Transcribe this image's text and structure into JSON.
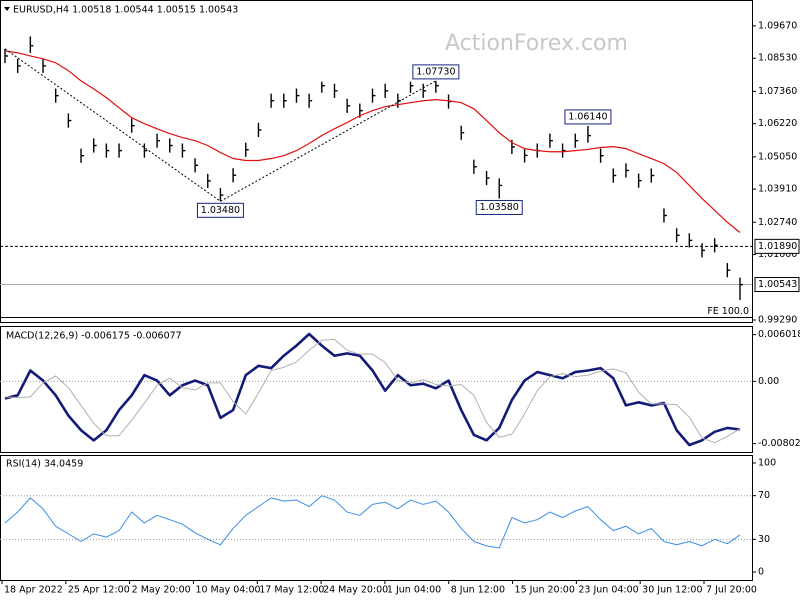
{
  "chart_data": [
    {
      "type": "ohlc",
      "title": "EURUSD,H4 1.00518 1.00544 1.00515 1.00543",
      "watermark": "ActionForex.com",
      "x_labels": [
        "18 Apr 2022",
        "25 Apr 12:00",
        "2 May 20:00",
        "10 May 04:00",
        "17 May 12:00",
        "24 May 20:00",
        "1 Jun 04:00",
        "8 Jun 12:00",
        "15 Jun 20:00",
        "23 Jun 04:00",
        "30 Jun 12:00",
        "7 Jul 20:00"
      ],
      "color": "#000000",
      "high": [
        1.0886,
        1.0851,
        1.093,
        1.0851,
        1.0746,
        1.0658,
        1.0534,
        1.057,
        1.0552,
        1.0552,
        1.064,
        1.0552,
        1.0587,
        1.057,
        1.0552,
        1.05,
        1.0445,
        1.0395,
        1.0465,
        1.0555,
        1.0625,
        1.0728,
        1.0728,
        1.0746,
        1.0728,
        1.077,
        1.0763,
        1.071,
        1.0693,
        1.0746,
        1.0763,
        1.0728,
        1.077,
        1.0763,
        1.0773,
        1.0725,
        1.0615,
        1.0495,
        1.0455,
        1.0429,
        1.0565,
        1.0535,
        1.0552,
        1.0587,
        1.0552,
        1.0587,
        1.0614,
        1.0534,
        1.0464,
        1.0482,
        1.0446,
        1.0464,
        1.0323,
        1.0253,
        1.0235,
        1.02,
        1.0218,
        1.013,
        1.0079
      ],
      "low": [
        1.0836,
        1.0801,
        1.0872,
        1.0801,
        1.0696,
        1.0608,
        1.0484,
        1.052,
        1.0502,
        1.0502,
        1.059,
        1.0502,
        1.0537,
        1.052,
        1.0502,
        1.045,
        1.0395,
        1.0348,
        1.0415,
        1.0505,
        1.0575,
        1.0678,
        1.0678,
        1.0696,
        1.0678,
        1.0731,
        1.0713,
        1.066,
        1.0643,
        1.0696,
        1.0713,
        1.0678,
        1.0731,
        1.0713,
        1.0731,
        1.0675,
        1.0565,
        1.0445,
        1.0405,
        1.0358,
        1.0515,
        1.0485,
        1.0502,
        1.0537,
        1.0502,
        1.0537,
        1.0555,
        1.0484,
        1.0414,
        1.0432,
        1.0396,
        1.0414,
        1.0273,
        1.0203,
        1.0185,
        1.015,
        1.0168,
        1.008,
        1.0
      ],
      "close": [
        1.0861,
        1.0826,
        1.0897,
        1.0826,
        1.0721,
        1.0633,
        1.0509,
        1.0545,
        1.0527,
        1.0527,
        1.0615,
        1.0527,
        1.0562,
        1.0545,
        1.0527,
        1.0475,
        1.042,
        1.037,
        1.044,
        1.053,
        1.06,
        1.0703,
        1.0703,
        1.0721,
        1.0703,
        1.0756,
        1.0738,
        1.0685,
        1.0668,
        1.0721,
        1.0738,
        1.0703,
        1.0756,
        1.0738,
        1.0756,
        1.07,
        1.059,
        1.047,
        1.043,
        1.0404,
        1.054,
        1.051,
        1.0527,
        1.0562,
        1.0527,
        1.0562,
        1.058,
        1.0509,
        1.0439,
        1.0457,
        1.0421,
        1.0439,
        1.0298,
        1.0228,
        1.021,
        1.0175,
        1.0193,
        1.0105,
        1.0054
      ],
      "moving_average": {
        "color": "#e01010",
        "values": [
          1.0879,
          1.0872,
          1.0861,
          1.0851,
          1.0837,
          1.0809,
          1.0773,
          1.0745,
          1.0714,
          1.0678,
          1.0643,
          1.0622,
          1.0604,
          1.0587,
          1.0573,
          1.0562,
          1.0545,
          1.052,
          1.0499,
          1.0492,
          1.0492,
          1.0499,
          1.0509,
          1.0527,
          1.0552,
          1.058,
          1.0604,
          1.0626,
          1.065,
          1.0668,
          1.0682,
          1.0689,
          1.0696,
          1.0703,
          1.0707,
          1.0703,
          1.0696,
          1.0675,
          1.0633,
          1.059,
          1.0555,
          1.0534,
          1.0527,
          1.0523,
          1.0523,
          1.0527,
          1.0531,
          1.0538,
          1.0541,
          1.0534,
          1.0516,
          1.0499,
          1.0481,
          1.045,
          1.0404,
          1.0358,
          1.0316,
          1.0274,
          1.0238
        ]
      },
      "annotations": [
        {
          "value": 1.0348,
          "label": "1.03480",
          "at": "low"
        },
        {
          "value": 1.0773,
          "label": "1.07730",
          "at": "high"
        },
        {
          "value": 1.0358,
          "label": "1.03580",
          "at": "low"
        },
        {
          "value": 1.0614,
          "label": "1.06140",
          "at": "high"
        }
      ],
      "levels": [
        {
          "value": 1.0189,
          "label": "1.01890",
          "style": "dashed"
        },
        {
          "value": 1.00543,
          "label": "1.00543",
          "style": "price"
        },
        {
          "value": 0.9938,
          "label": "FE 100.0",
          "style": "fibo"
        }
      ],
      "ylim": [
        0.9922,
        1.1055
      ],
      "yticks": [
        {
          "value": 1.0967,
          "label": "1.09670"
        },
        {
          "value": 1.0853,
          "label": "1.08530"
        },
        {
          "value": 1.0736,
          "label": "1.07360"
        },
        {
          "value": 1.0622,
          "label": "1.06220"
        },
        {
          "value": 1.0505,
          "label": "1.05050"
        },
        {
          "value": 1.0391,
          "label": "1.03910"
        },
        {
          "value": 1.0274,
          "label": "1.02740"
        },
        {
          "value": 1.016,
          "label": "1.01600"
        },
        {
          "value": 0.9929,
          "label": "0.99290"
        }
      ],
      "grid": false
    },
    {
      "type": "line",
      "title": "MACD(12,26,9) -0.006175 -0.006077",
      "lines": [
        {
          "color": "#141a78",
          "width": 2.6,
          "values": [
            -0.0022,
            -0.0018,
            0.0014,
            0.0001,
            -0.0018,
            -0.0044,
            -0.0063,
            -0.0076,
            -0.0063,
            -0.0037,
            -0.0018,
            0.0008,
            0.0001,
            -0.0018,
            -0.0005,
            0.0001,
            -0.0005,
            -0.0047,
            -0.0037,
            0.0008,
            0.002,
            0.0017,
            0.0033,
            0.0046,
            0.0061,
            0.0046,
            0.0033,
            0.0036,
            0.0033,
            0.0014,
            -0.0012,
            0.0008,
            -0.0005,
            -0.0003,
            -0.0009,
            0.0001,
            -0.0037,
            -0.0069,
            -0.0076,
            -0.006,
            -0.0024,
            0.0001,
            0.0012,
            0.0008,
            0.0004,
            0.0012,
            0.0014,
            0.0017,
            0.0004,
            -0.0031,
            -0.0027,
            -0.0031,
            -0.0028,
            -0.0063,
            -0.0082,
            -0.0076,
            -0.0065,
            -0.006,
            -0.0062
          ]
        },
        {
          "color": "#b0b0b0",
          "width": 1,
          "values": [
            -0.002,
            -0.0021,
            -0.002,
            -0.0002,
            0.0007,
            -0.0008,
            -0.0031,
            -0.0054,
            -0.007,
            -0.007,
            -0.005,
            -0.0028,
            -0.0005,
            0.0004,
            -0.0008,
            -0.0011,
            -0.0002,
            -0.0002,
            -0.0026,
            -0.0042,
            -0.0015,
            0.0014,
            0.0018,
            0.0025,
            0.004,
            0.0053,
            0.0054,
            0.004,
            0.0035,
            0.0035,
            0.0024,
            0.0001,
            -0.0002,
            0.0002,
            -0.0004,
            -0.0006,
            -0.0004,
            -0.0018,
            -0.0053,
            -0.0072,
            -0.0068,
            -0.0042,
            -0.0012,
            0.0006,
            0.001,
            0.0006,
            0.0008,
            0.0013,
            0.0016,
            0.0011,
            -0.0014,
            -0.0029,
            -0.0029,
            -0.003,
            -0.0046,
            -0.0073,
            -0.0079,
            -0.0071,
            -0.0061
          ]
        }
      ],
      "ylim": [
        -0.0091,
        0.007
      ],
      "yticks": [
        0.006018,
        {
          "value": 0,
          "label": "0.00"
        },
        -0.00802
      ],
      "grid": "inner"
    },
    {
      "type": "line",
      "title": "RSI(14) 34.0459",
      "lines": [
        {
          "color": "#3a8ee8",
          "width": 1,
          "values": [
            45,
            55,
            68,
            58,
            42,
            35,
            28,
            35,
            32,
            38,
            55,
            45,
            52,
            48,
            44,
            36,
            30,
            25,
            40,
            52,
            60,
            68,
            65,
            66,
            60,
            70,
            66,
            55,
            52,
            62,
            64,
            58,
            66,
            62,
            65,
            55,
            40,
            28,
            24,
            22,
            50,
            45,
            48,
            55,
            50,
            56,
            60,
            48,
            38,
            42,
            35,
            40,
            28,
            25,
            28,
            24,
            30,
            26,
            34
          ]
        }
      ],
      "ylim": [
        -7.3,
        106.4
      ],
      "yticks": [
        0,
        30,
        70,
        100
      ],
      "grid": "inner"
    }
  ]
}
